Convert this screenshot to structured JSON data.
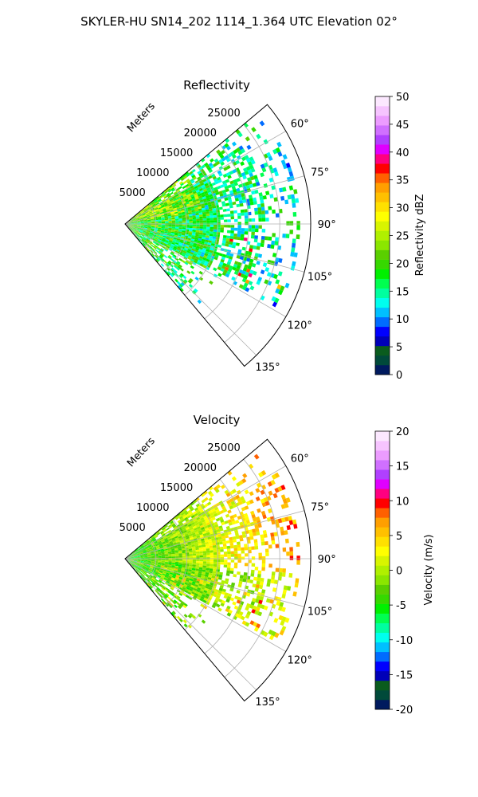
{
  "suptitle": "SKYLER-HU  SN14_202  1114_1.364 UTC Elevation 02°",
  "chart_data": [
    {
      "type": "polar-sector",
      "title": "Reflectivity",
      "field": "reflectivity",
      "r_label": "Meters",
      "r_ticks": [
        5000,
        10000,
        15000,
        20000,
        25000
      ],
      "r_tick_labels": [
        "5000",
        "10000",
        "15000",
        "20000",
        "25000"
      ],
      "rmax": 30000,
      "theta_range_deg": [
        50,
        140
      ],
      "theta_ticks": [
        "60°",
        "75°",
        "90°",
        "105°",
        "120°",
        "135°"
      ],
      "theta_tick_values": [
        60,
        75,
        90,
        105,
        120,
        135
      ],
      "grid": true,
      "colorbar": {
        "label": "Reflectivity dBZ",
        "vmin": 0,
        "vmax": 50,
        "ticks": [
          "0",
          "5",
          "10",
          "15",
          "20",
          "25",
          "30",
          "35",
          "40",
          "45",
          "50"
        ],
        "colors": [
          "#001a5e",
          "#004a3a",
          "#0a5c1e",
          "#0000b8",
          "#0000ff",
          "#006cff",
          "#00c0ff",
          "#00ffee",
          "#00ff9f",
          "#00ff50",
          "#00f000",
          "#36d800",
          "#5acf00",
          "#8be600",
          "#b0f000",
          "#d8f500",
          "#ffff00",
          "#ffe000",
          "#ffc000",
          "#ff9f00",
          "#ff6000",
          "#ff0000",
          "#ff0080",
          "#e000ff",
          "#b040ff",
          "#d070ff",
          "#ec9cff",
          "#f6c4ff",
          "#fce8ff"
        ]
      },
      "dominant_values": "mostly 12–28 dBZ (green/yellow), scattered 30–45 dBZ returns near 100–120° at 18000–24000 m"
    },
    {
      "type": "polar-sector",
      "title": "Velocity",
      "field": "velocity",
      "r_label": "Meters",
      "r_ticks": [
        5000,
        10000,
        15000,
        20000,
        25000
      ],
      "r_tick_labels": [
        "5000",
        "10000",
        "15000",
        "20000",
        "25000"
      ],
      "rmax": 30000,
      "theta_range_deg": [
        50,
        140
      ],
      "theta_ticks": [
        "60°",
        "75°",
        "90°",
        "105°",
        "120°",
        "135°"
      ],
      "theta_tick_values": [
        60,
        75,
        90,
        105,
        120,
        135
      ],
      "grid": true,
      "colorbar": {
        "label": "Velocity (m/s)",
        "vmin": -20,
        "vmax": 20,
        "ticks": [
          "-20",
          "-15",
          "-10",
          "-5",
          "0",
          "5",
          "10",
          "15",
          "20"
        ],
        "colors": [
          "#001a5e",
          "#004a3a",
          "#0a5c1e",
          "#0000b8",
          "#0000ff",
          "#006cff",
          "#00c0ff",
          "#00ffee",
          "#00ff9f",
          "#00ff50",
          "#00f000",
          "#36d800",
          "#5acf00",
          "#8be600",
          "#b0f000",
          "#d8f500",
          "#ffff00",
          "#ffe000",
          "#ffc000",
          "#ff9f00",
          "#ff6000",
          "#ff0000",
          "#ff0080",
          "#e000ff",
          "#b040ff",
          "#d070ff",
          "#ec9cff",
          "#f6c4ff",
          "#fce8ff"
        ]
      },
      "dominant_values": "near range about -8 to -5 m/s (green), far range 0 to +5 m/s (yellow/orange)"
    }
  ]
}
